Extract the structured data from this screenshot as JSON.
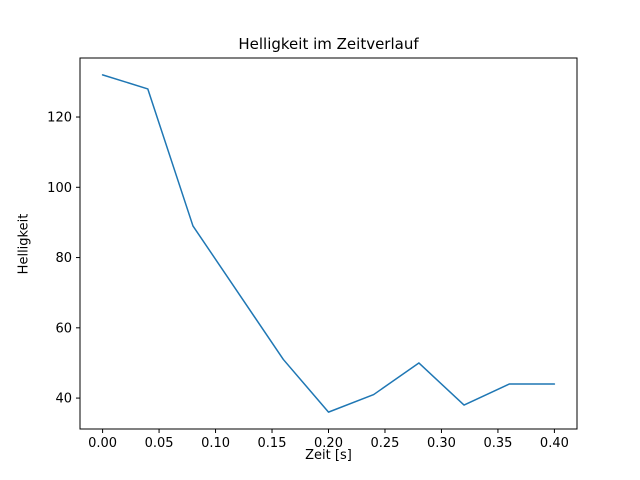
{
  "figure": {
    "background": "#ffffff"
  },
  "chart_data": {
    "type": "line",
    "title": "Helligkeit im Zeitverlauf",
    "xlabel": "Zeit [s]",
    "ylabel": "Helligkeit",
    "x": [
      0.0,
      0.04,
      0.08,
      0.12,
      0.16,
      0.2,
      0.24,
      0.28,
      0.32,
      0.36,
      0.4
    ],
    "y": [
      132,
      128,
      89,
      70,
      51,
      36,
      41,
      50,
      38,
      44,
      44
    ],
    "xlim": [
      -0.02,
      0.42
    ],
    "ylim": [
      31.2,
      136.8
    ],
    "xticks": {
      "values": [
        0.0,
        0.05,
        0.1,
        0.15,
        0.2,
        0.25,
        0.3,
        0.35,
        0.4
      ],
      "labels": [
        "0.00",
        "0.05",
        "0.10",
        "0.15",
        "0.20",
        "0.25",
        "0.30",
        "0.35",
        "0.40"
      ]
    },
    "yticks": {
      "values": [
        40,
        60,
        80,
        100,
        120
      ],
      "labels": [
        "40",
        "60",
        "80",
        "100",
        "120"
      ]
    },
    "line_color": "#1f77b4",
    "line_width": 1.5,
    "grid": false,
    "legend": null,
    "spine_color": "#000000",
    "tick_label_color": "#000000"
  }
}
